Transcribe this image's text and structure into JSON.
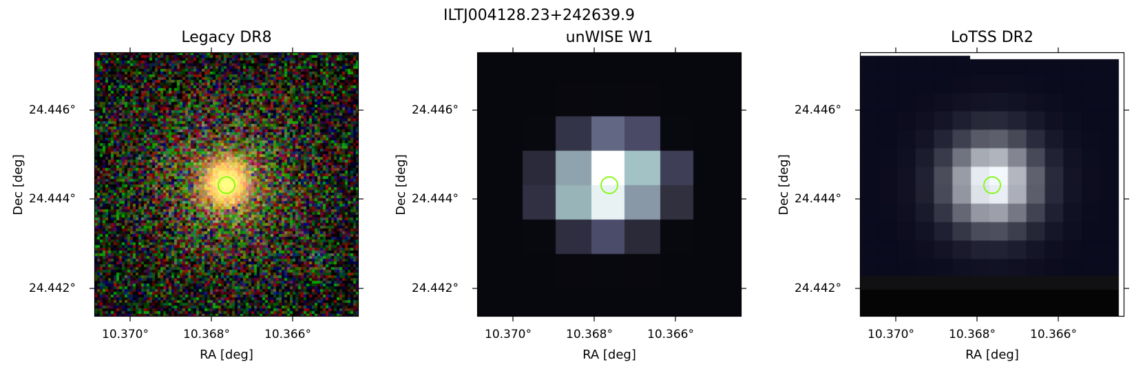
{
  "figure": {
    "title": "ILTJ004128.23+242639.9"
  },
  "panels": [
    {
      "title": "Legacy DR8",
      "xlabel": "RA [deg]",
      "ylabel": "Dec [deg]",
      "xticks": [
        "10.370°",
        "10.368°",
        "10.366°"
      ],
      "yticks": [
        "24.446°",
        "24.444°",
        "24.442°"
      ],
      "marker_color": "#7cfc00"
    },
    {
      "title": "unWISE W1",
      "xlabel": "RA [deg]",
      "ylabel": "Dec [deg]",
      "xticks": [
        "10.370°",
        "10.368°",
        "10.366°"
      ],
      "yticks": [
        "24.446°",
        "24.444°",
        "24.442°"
      ],
      "marker_color": "#7cfc00"
    },
    {
      "title": "LoTSS DR2",
      "xlabel": "RA [deg]",
      "ylabel": "Dec [deg]",
      "xticks": [
        "10.370°",
        "10.368°",
        "10.366°"
      ],
      "yticks": [
        "24.446°",
        "24.444°",
        "24.442°"
      ],
      "marker_color": "#7cfc00"
    }
  ]
}
